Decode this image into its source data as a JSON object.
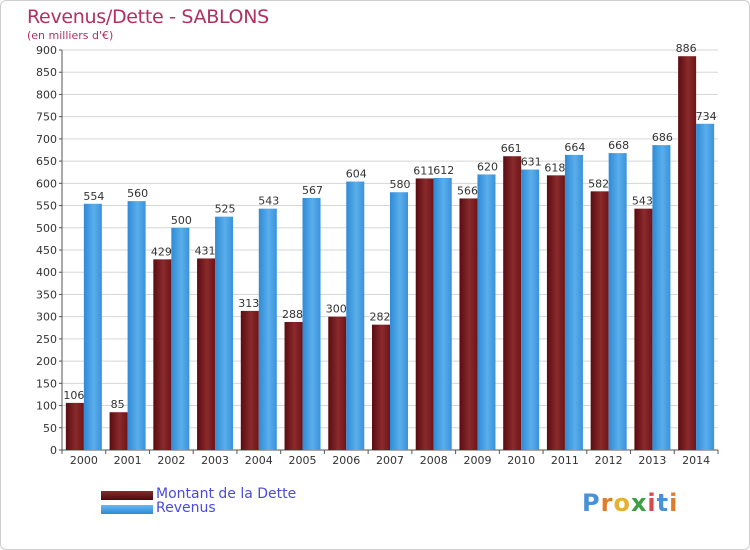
{
  "header": {
    "title": "Revenus/Dette - SABLONS",
    "subtitle": "(en milliers d'€)"
  },
  "colors": {
    "dette": "#6e1518",
    "revenus": "#2f8ad6",
    "title": "#b03060",
    "legend_text": "#4a4ae0"
  },
  "chart_data": {
    "type": "bar",
    "title": "Revenus/Dette - SABLONS",
    "ylabel": "(en milliers d'€)",
    "xlabel": "",
    "ylim": [
      0,
      900
    ],
    "yticks": [
      0,
      50,
      100,
      150,
      200,
      250,
      300,
      350,
      400,
      450,
      500,
      550,
      600,
      650,
      700,
      750,
      800,
      850,
      900
    ],
    "grid": true,
    "legend": "bottom-left",
    "categories": [
      "2000",
      "2001",
      "2002",
      "2003",
      "2004",
      "2005",
      "2006",
      "2007",
      "2008",
      "2009",
      "2010",
      "2011",
      "2012",
      "2013",
      "2014"
    ],
    "series": [
      {
        "name": "Montant de la Dette",
        "values": [
          106,
          85,
          429,
          431,
          313,
          288,
          300,
          282,
          611,
          566,
          661,
          618,
          582,
          543,
          886
        ]
      },
      {
        "name": "Revenus",
        "values": [
          554,
          560,
          500,
          525,
          543,
          567,
          604,
          580,
          612,
          620,
          631,
          664,
          668,
          686,
          734
        ]
      }
    ]
  },
  "legend": {
    "items": [
      {
        "label": "Montant de la Dette"
      },
      {
        "label": "Revenus"
      }
    ]
  },
  "logo": {
    "letters": [
      "P",
      "r",
      "o",
      "x",
      "i",
      "t",
      "i"
    ],
    "colors": [
      "#4a90d9",
      "#e07b2a",
      "#e8b030",
      "#3aa040",
      "#d94a4a",
      "#4a90d9",
      "#e07b2a"
    ]
  }
}
